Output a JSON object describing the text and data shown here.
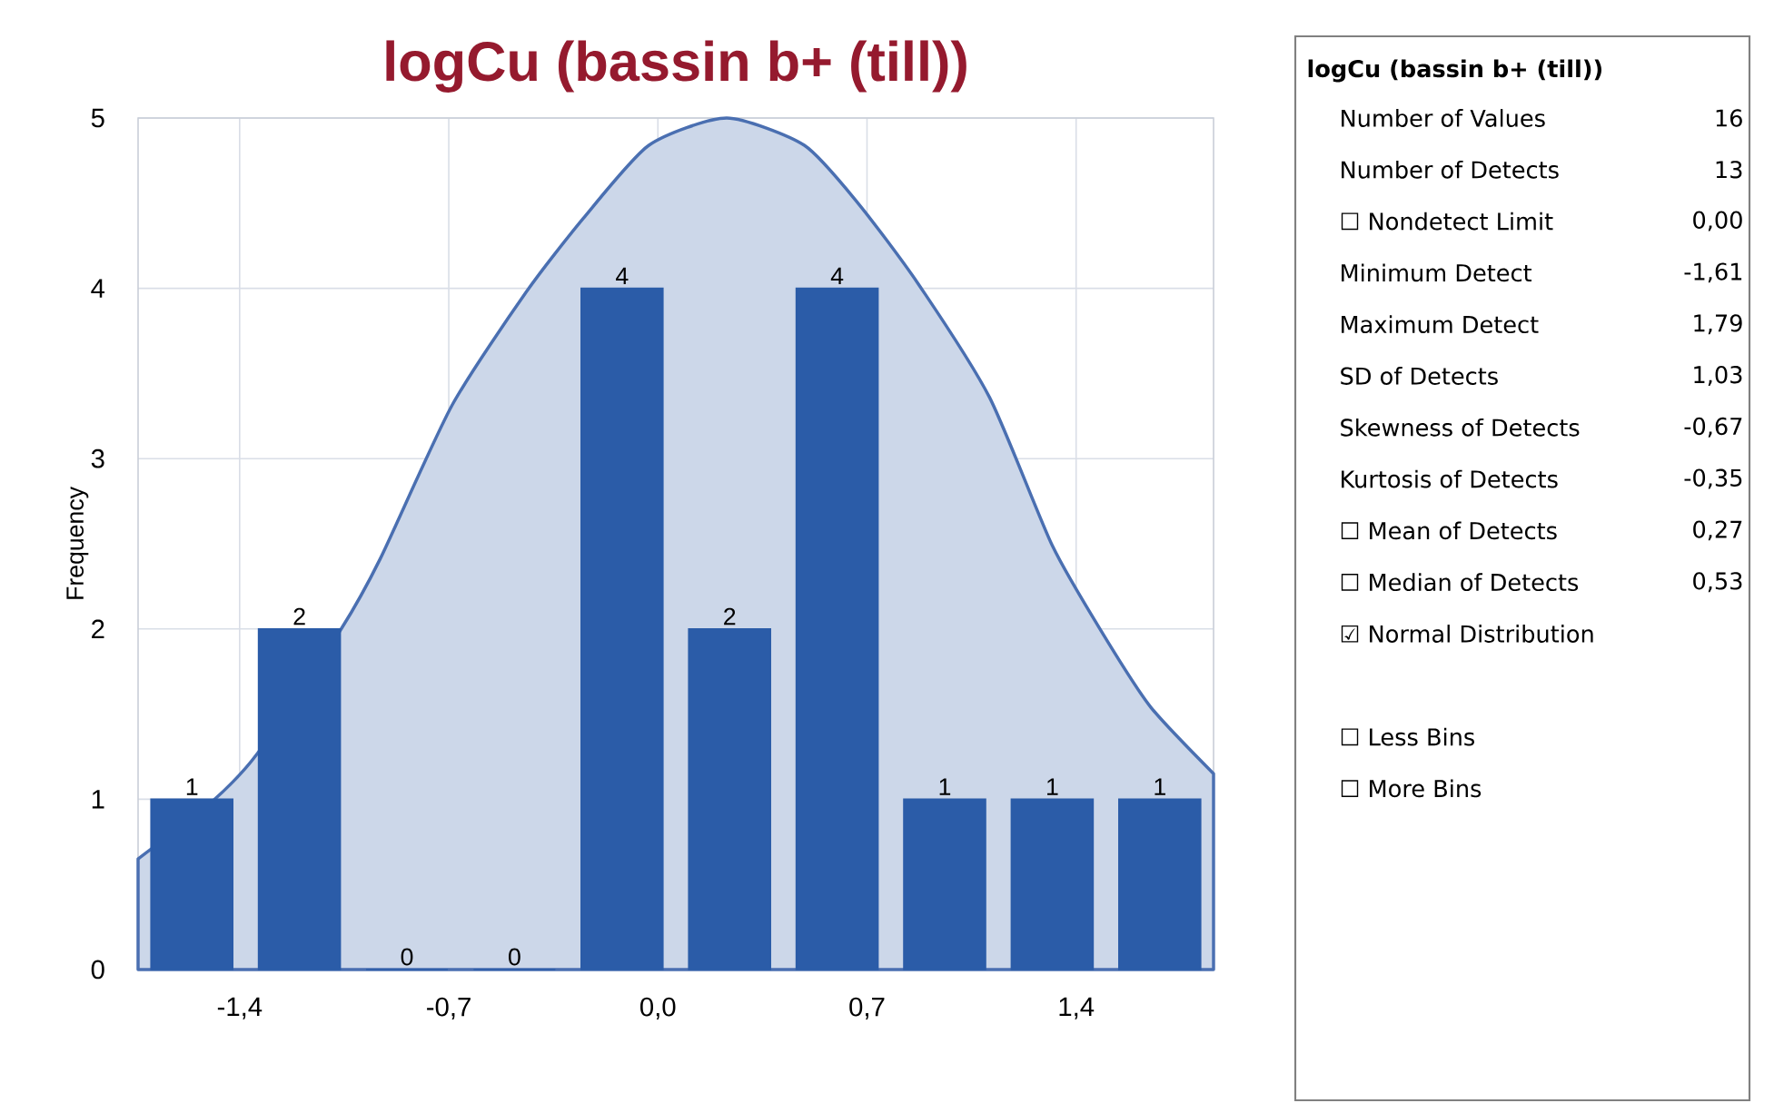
{
  "chart_data": [
    {
      "type": "histogram",
      "title": "logCu (bassin b+ (till))",
      "ylabel": "Frequency",
      "bins": [
        -1.74,
        -1.38,
        -1.02,
        -0.66,
        -0.3,
        0.06,
        0.42,
        0.78,
        1.14,
        1.5,
        1.86
      ],
      "series": [
        {
          "values": [
            1,
            2,
            0,
            0,
            4,
            2,
            4,
            1,
            1,
            1
          ],
          "color": "#2b5ca8",
          "value_labels": [
            "1",
            "2",
            "0",
            "0",
            "4",
            "2",
            "4",
            "1",
            "1",
            "1"
          ]
        },
        {
          "type": "area",
          "x": [
            -1.74,
            -1.49,
            -1.34,
            -1.06,
            -0.93,
            -0.69,
            -0.44,
            -0.25,
            -0.03,
            0.23,
            0.49,
            0.67,
            0.87,
            1.11,
            1.32,
            1.49,
            1.65,
            1.86
          ],
          "values": [
            0.65,
            0.99,
            1.27,
            2.0,
            2.41,
            3.31,
            3.98,
            4.41,
            4.84,
            5.0,
            4.84,
            4.5,
            4.03,
            3.36,
            2.49,
            1.97,
            1.54,
            1.15
          ],
          "color": "#4a6fb1"
        }
      ],
      "xlim": [
        -1.74,
        1.86
      ],
      "ylim": [
        0,
        5
      ],
      "xticks": [
        {
          "value": -1.4,
          "label": "-1,4"
        },
        {
          "value": -0.7,
          "label": "-0,7"
        },
        {
          "value": 0,
          "label": "0,0"
        },
        {
          "value": 0.7,
          "label": "0,7"
        },
        {
          "value": 1.4,
          "label": "1,4"
        }
      ],
      "yticks": [
        0,
        1,
        2,
        3,
        4,
        5
      ],
      "grid": true
    },
    {
      "type": "other",
      "title": "logCu (bassin b+ (till))",
      "categories": [
        "Number of Values",
        "Number of Detects",
        "☐ Nondetect Limit",
        "Minimum Detect",
        "Maximum Detect",
        "SD of Detects",
        "Skewness of Detects",
        "Kurtosis of Detects",
        "☐ Mean of Detects",
        "☐ Median of Detects",
        "☑ Normal Distribution",
        null,
        "☐ Less Bins",
        "☐ More Bins"
      ],
      "value_labels": [
        "16",
        "13",
        "0,00",
        "-1,61",
        "1,79",
        "1,03",
        "-0,67",
        "-0,35",
        "0,27",
        "0,53",
        null,
        null,
        null,
        null
      ]
    }
  ]
}
